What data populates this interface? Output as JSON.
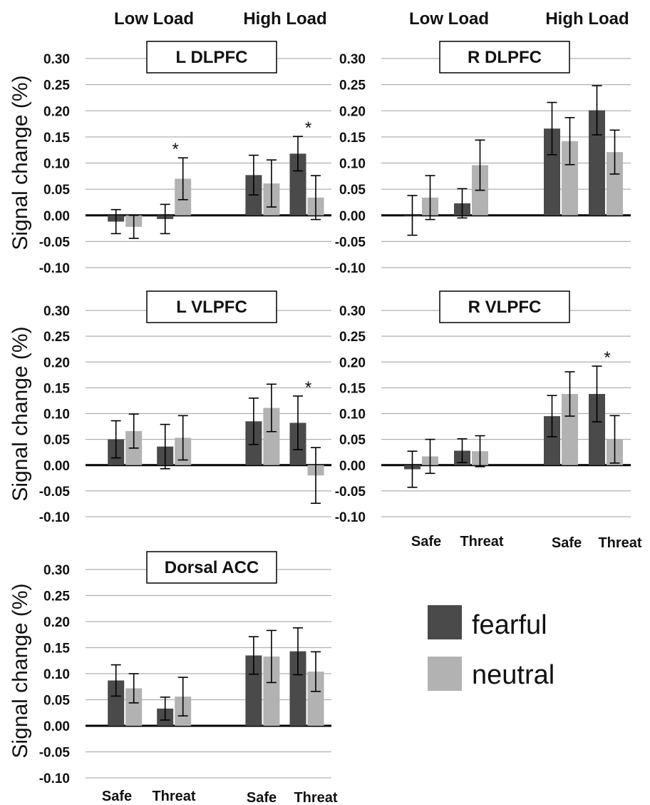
{
  "header": {
    "left_low": "Low Load",
    "left_high": "High Load",
    "right_low": "Low Load",
    "right_high": "High Load"
  },
  "y_axis_label": "Signal change (%)",
  "y_ticks": [
    "0.30",
    "0.25",
    "0.20",
    "0.15",
    "0.10",
    "0.05",
    "0.00",
    "-0.05",
    "-0.10"
  ],
  "bottom_categories": {
    "right_col": [
      "Safe",
      "Threat",
      "Safe",
      "Threat"
    ],
    "left_col": [
      "Safe",
      "Threat",
      "Safe",
      "Threat"
    ]
  },
  "legend": [
    {
      "label": "fearful",
      "color": "#4a4a4a"
    },
    {
      "label": "neutral",
      "color": "#b2b2b2"
    }
  ],
  "colors": {
    "fearful": "#4a4a4a",
    "neutral": "#b2b2b2",
    "grid": "#b0b0b0",
    "axis": "#000000"
  },
  "chart_data": [
    {
      "type": "bar",
      "title": "L DLPFC",
      "ylim": [
        -0.1,
        0.3
      ],
      "categories": [
        "Low Load Safe",
        "Low Load Threat",
        "High Load Safe",
        "High Load Threat"
      ],
      "series": [
        {
          "name": "fearful",
          "values": [
            -0.012,
            -0.007,
            0.077,
            0.118
          ],
          "errors": [
            0.023,
            0.028,
            0.038,
            0.033
          ]
        },
        {
          "name": "neutral",
          "values": [
            -0.022,
            0.07,
            0.061,
            0.034
          ],
          "errors": [
            0.022,
            0.04,
            0.045,
            0.042
          ]
        }
      ],
      "annotations": [
        {
          "category": 1,
          "text": "*"
        },
        {
          "category": 3,
          "text": "*"
        }
      ]
    },
    {
      "type": "bar",
      "title": "R DLPFC",
      "ylim": [
        -0.1,
        0.3
      ],
      "categories": [
        "Low Load Safe",
        "Low Load Threat",
        "High Load Safe",
        "High Load Threat"
      ],
      "series": [
        {
          "name": "fearful",
          "values": [
            0.0,
            0.023,
            0.166,
            0.201
          ],
          "errors": [
            0.038,
            0.028,
            0.05,
            0.047
          ]
        },
        {
          "name": "neutral",
          "values": [
            0.034,
            0.096,
            0.142,
            0.121
          ],
          "errors": [
            0.042,
            0.048,
            0.045,
            0.042
          ]
        }
      ],
      "annotations": []
    },
    {
      "type": "bar",
      "title": "L VLPFC",
      "ylim": [
        -0.1,
        0.3
      ],
      "categories": [
        "Low Load Safe",
        "Low Load Threat",
        "High Load Safe",
        "High Load Threat"
      ],
      "series": [
        {
          "name": "fearful",
          "values": [
            0.05,
            0.036,
            0.085,
            0.082
          ],
          "errors": [
            0.036,
            0.043,
            0.045,
            0.052
          ]
        },
        {
          "name": "neutral",
          "values": [
            0.066,
            0.053,
            0.111,
            -0.02
          ],
          "errors": [
            0.033,
            0.043,
            0.046,
            0.054
          ]
        }
      ],
      "annotations": [
        {
          "category": 3,
          "text": "*"
        }
      ]
    },
    {
      "type": "bar",
      "title": "R VLPFC",
      "ylim": [
        -0.1,
        0.3
      ],
      "categories": [
        "Low Load Safe",
        "Low Load Threat",
        "High Load Safe",
        "High Load Threat"
      ],
      "series": [
        {
          "name": "fearful",
          "values": [
            -0.008,
            0.028,
            0.095,
            0.138
          ],
          "errors": [
            0.035,
            0.023,
            0.04,
            0.054
          ]
        },
        {
          "name": "neutral",
          "values": [
            0.017,
            0.027,
            0.138,
            0.05
          ],
          "errors": [
            0.033,
            0.03,
            0.043,
            0.046
          ]
        }
      ],
      "annotations": [
        {
          "category": 3,
          "text": "*"
        }
      ]
    },
    {
      "type": "bar",
      "title": "Dorsal ACC",
      "ylim": [
        -0.1,
        0.3
      ],
      "categories": [
        "Low Load Safe",
        "Low Load Threat",
        "High Load Safe",
        "High Load Threat"
      ],
      "series": [
        {
          "name": "fearful",
          "values": [
            0.087,
            0.033,
            0.135,
            0.143
          ],
          "errors": [
            0.03,
            0.022,
            0.036,
            0.045
          ]
        },
        {
          "name": "neutral",
          "values": [
            0.072,
            0.056,
            0.133,
            0.104
          ],
          "errors": [
            0.028,
            0.037,
            0.05,
            0.038
          ]
        }
      ],
      "annotations": []
    }
  ]
}
